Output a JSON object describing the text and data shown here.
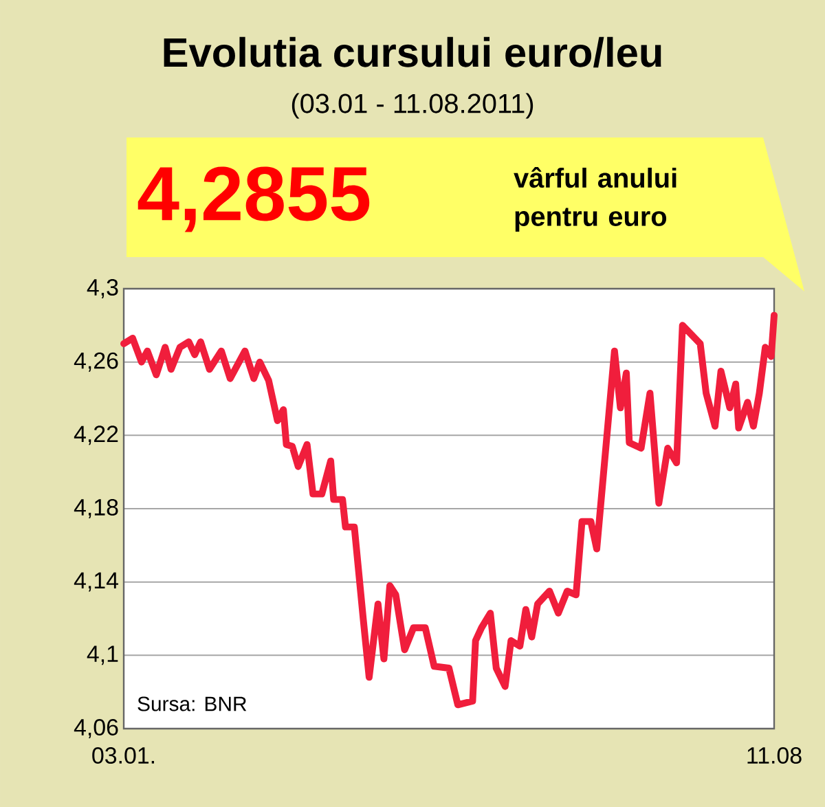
{
  "chart_data": {
    "type": "line",
    "title": "Evolutia cursului euro/leu",
    "subtitle": "(03.01 - 11.08.2011)",
    "x": [
      "2011-01-03",
      "2011-01-06",
      "2011-01-09",
      "2011-01-11",
      "2011-01-14",
      "2011-01-17",
      "2011-01-19",
      "2011-01-22",
      "2011-01-25",
      "2011-01-27",
      "2011-01-29",
      "2011-02-01",
      "2011-02-05",
      "2011-02-08",
      "2011-02-13",
      "2011-02-16",
      "2011-02-18",
      "2011-02-21",
      "2011-02-24",
      "2011-02-26",
      "2011-02-27",
      "2011-03-01",
      "2011-03-03",
      "2011-03-06",
      "2011-03-08",
      "2011-03-11",
      "2011-03-14",
      "2011-03-15",
      "2011-03-18",
      "2011-03-19",
      "2011-03-22",
      "2011-03-25",
      "2011-03-27",
      "2011-03-30",
      "2011-04-01",
      "2011-04-03",
      "2011-04-05",
      "2011-04-08",
      "2011-04-11",
      "2011-04-15",
      "2011-04-18",
      "2011-04-23",
      "2011-04-26",
      "2011-05-01",
      "2011-05-02",
      "2011-05-04",
      "2011-05-07",
      "2011-05-09",
      "2011-05-12",
      "2011-05-14",
      "2011-05-17",
      "2011-05-19",
      "2011-05-21",
      "2011-05-23",
      "2011-05-27",
      "2011-05-30",
      "2011-06-02",
      "2011-06-05",
      "2011-06-07",
      "2011-06-10",
      "2011-06-12",
      "2011-06-18",
      "2011-06-20",
      "2011-06-22",
      "2011-06-23",
      "2011-06-27",
      "2011-06-30",
      "2011-07-03",
      "2011-07-06",
      "2011-07-09",
      "2011-07-11",
      "2011-07-14",
      "2011-07-17",
      "2011-07-19",
      "2011-07-22",
      "2011-07-24",
      "2011-07-27",
      "2011-07-29",
      "2011-07-30",
      "2011-08-02",
      "2011-08-04",
      "2011-08-06",
      "2011-08-08",
      "2011-08-10",
      "2011-08-11"
    ],
    "series": [
      {
        "color": "#f01e3c",
        "values": [
          4.27,
          4.273,
          4.26,
          4.266,
          4.253,
          4.268,
          4.256,
          4.268,
          4.271,
          4.264,
          4.271,
          4.256,
          4.266,
          4.251,
          4.266,
          4.251,
          4.26,
          4.25,
          4.228,
          4.234,
          4.215,
          4.214,
          4.203,
          4.215,
          4.188,
          4.188,
          4.206,
          4.185,
          4.185,
          4.17,
          4.17,
          4.12,
          4.088,
          4.128,
          4.098,
          4.138,
          4.133,
          4.103,
          4.115,
          4.115,
          4.094,
          4.093,
          4.073,
          4.075,
          4.108,
          4.115,
          4.123,
          4.093,
          4.083,
          4.108,
          4.105,
          4.125,
          4.11,
          4.128,
          4.135,
          4.123,
          4.135,
          4.133,
          4.173,
          4.173,
          4.158,
          4.266,
          4.235,
          4.254,
          4.216,
          4.213,
          4.243,
          4.183,
          4.213,
          4.205,
          4.28,
          4.275,
          4.27,
          4.243,
          4.225,
          4.255,
          4.235,
          4.248,
          4.224,
          4.238,
          4.225,
          4.243,
          4.268,
          4.263,
          4.2855
        ]
      }
    ],
    "xlim": [
      "2011-01-03",
      "2011-08-11"
    ],
    "xticks": [
      {
        "value": "2011-01-03",
        "label": "03.01."
      },
      {
        "value": "2011-08-11",
        "label": "11.08"
      }
    ],
    "ylim": [
      4.06,
      4.3
    ],
    "yticks": [
      {
        "value": 4.06,
        "label": "4,06"
      },
      {
        "value": 4.1,
        "label": "4,1"
      },
      {
        "value": 4.14,
        "label": "4,14"
      },
      {
        "value": 4.18,
        "label": "4,18"
      },
      {
        "value": 4.22,
        "label": "4,22"
      },
      {
        "value": 4.26,
        "label": "4,26"
      },
      {
        "value": 4.3,
        "label": "4,3"
      }
    ],
    "grid": "y",
    "marker": "none",
    "line_style": "solid",
    "annotations": [
      "4,2855",
      "vârful anului pentru euro",
      "Sursa: BNR"
    ]
  }
}
